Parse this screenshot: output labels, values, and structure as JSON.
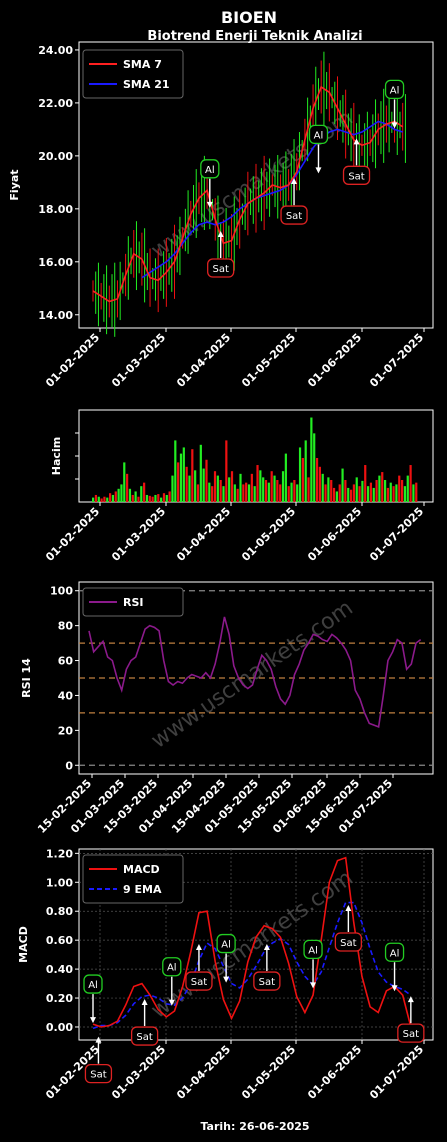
{
  "header": {
    "symbol": "BIOEN",
    "subtitle": "Biotrend Enerji Teknik Analizi"
  },
  "footer": {
    "date": "Tarih: 26-06-2025"
  },
  "watermark": "www.uscmarkets.com",
  "colors": {
    "bull": "#22ee22",
    "bear": "#ee1111",
    "sma7": "#ff2020",
    "sma21": "#1a1aff",
    "rsi": "#8b1a8b",
    "macd": "#ee1111",
    "ema9": "#1a1aff",
    "ref": "#c08040",
    "axis": "#ffffff",
    "buy_border": "#22cc22",
    "sell_border": "#dd2222"
  },
  "chart_data": [
    {
      "id": "price",
      "type": "line",
      "ylabel": "Fiyat",
      "ylim": [
        13.5,
        24.3
      ],
      "yticks": [
        "14.00",
        "16.00",
        "18.00",
        "20.00",
        "22.00",
        "24.00"
      ],
      "xticks": [
        "01-02-2025",
        "01-03-2025",
        "01-04-2025",
        "01-05-2025",
        "01-06-2025",
        "01-07-2025"
      ],
      "legend": [
        "SMA 7",
        "SMA 21"
      ],
      "sma7": [
        [
          0,
          14.9
        ],
        [
          3,
          14.7
        ],
        [
          6,
          14.5
        ],
        [
          9,
          14.6
        ],
        [
          12,
          15.5
        ],
        [
          15,
          16.3
        ],
        [
          18,
          16.1
        ],
        [
          21,
          15.4
        ],
        [
          24,
          15.3
        ],
        [
          27,
          15.6
        ],
        [
          30,
          16.0
        ],
        [
          33,
          16.9
        ],
        [
          36,
          17.8
        ],
        [
          39,
          18.4
        ],
        [
          42,
          18.7
        ],
        [
          45,
          17.6
        ],
        [
          48,
          16.7
        ],
        [
          51,
          16.8
        ],
        [
          54,
          17.6
        ],
        [
          57,
          18.2
        ],
        [
          60,
          18.4
        ],
        [
          63,
          18.6
        ],
        [
          66,
          18.9
        ],
        [
          69,
          18.8
        ],
        [
          72,
          18.9
        ],
        [
          75,
          19.4
        ],
        [
          78,
          20.6
        ],
        [
          81,
          21.8
        ],
        [
          84,
          22.6
        ],
        [
          87,
          22.4
        ],
        [
          90,
          21.8
        ],
        [
          93,
          21.2
        ],
        [
          96,
          20.6
        ],
        [
          99,
          20.4
        ],
        [
          102,
          20.5
        ],
        [
          105,
          21.0
        ],
        [
          108,
          21.2
        ],
        [
          111,
          21.3
        ],
        [
          114,
          21.1
        ]
      ],
      "sma21": [
        [
          18,
          15.4
        ],
        [
          21,
          15.6
        ],
        [
          24,
          15.8
        ],
        [
          27,
          16.0
        ],
        [
          30,
          16.3
        ],
        [
          33,
          16.7
        ],
        [
          36,
          17.1
        ],
        [
          39,
          17.4
        ],
        [
          42,
          17.5
        ],
        [
          45,
          17.4
        ],
        [
          48,
          17.5
        ],
        [
          51,
          17.7
        ],
        [
          54,
          18.0
        ],
        [
          57,
          18.2
        ],
        [
          60,
          18.4
        ],
        [
          63,
          18.5
        ],
        [
          66,
          18.6
        ],
        [
          69,
          18.7
        ],
        [
          72,
          18.9
        ],
        [
          75,
          19.3
        ],
        [
          78,
          19.8
        ],
        [
          81,
          20.3
        ],
        [
          84,
          20.7
        ],
        [
          87,
          20.9
        ],
        [
          90,
          21.0
        ],
        [
          93,
          20.9
        ],
        [
          96,
          20.8
        ],
        [
          99,
          20.9
        ],
        [
          102,
          21.1
        ],
        [
          105,
          21.3
        ],
        [
          108,
          21.2
        ],
        [
          111,
          21.0
        ],
        [
          114,
          20.9
        ]
      ],
      "signals": [
        {
          "label": "Al",
          "x": 43,
          "y": 18.0,
          "dir": "up"
        },
        {
          "label": "Sat",
          "x": 47,
          "y": 17.2,
          "dir": "down"
        },
        {
          "label": "Sat",
          "x": 74,
          "y": 19.2,
          "dir": "down"
        },
        {
          "label": "Al",
          "x": 83,
          "y": 19.3,
          "dir": "up"
        },
        {
          "label": "Sat",
          "x": 97,
          "y": 20.7,
          "dir": "down"
        },
        {
          "label": "Al",
          "x": 111,
          "y": 21.0,
          "dir": "up"
        }
      ]
    },
    {
      "id": "volume",
      "type": "bar",
      "ylabel": "Hacim",
      "xticks": [
        "01-02-2025",
        "01-03-2025",
        "01-04-2025",
        "01-05-2025",
        "01-06-2025",
        "01-07-2025"
      ],
      "values": [
        0.05,
        0.08,
        0.06,
        0.04,
        0.06,
        0.05,
        0.1,
        0.08,
        0.12,
        0.15,
        0.2,
        0.45,
        0.32,
        0.15,
        0.08,
        0.12,
        0.06,
        0.18,
        0.22,
        0.08,
        0.07,
        0.06,
        0.08,
        0.09,
        0.05,
        0.1,
        0.08,
        0.12,
        0.3,
        0.7,
        0.45,
        0.55,
        0.62,
        0.4,
        0.3,
        0.6,
        0.36,
        0.2,
        0.65,
        0.38,
        0.48,
        0.22,
        0.18,
        0.35,
        0.3,
        0.25,
        0.18,
        0.7,
        0.28,
        0.35,
        0.2,
        0.15,
        0.32,
        0.2,
        0.22,
        0.2,
        0.32,
        0.18,
        0.42,
        0.36,
        0.28,
        0.25,
        0.22,
        0.35,
        0.3,
        0.25,
        0.2,
        0.35,
        0.55,
        0.18,
        0.22,
        0.25,
        0.2,
        0.62,
        0.5,
        0.7,
        0.28,
        0.96,
        0.78,
        0.5,
        0.4,
        0.32,
        0.2,
        0.28,
        0.25,
        0.16,
        0.12,
        0.2,
        0.38,
        0.25,
        0.16,
        0.14,
        0.2,
        0.28,
        0.18,
        0.24,
        0.42,
        0.18,
        0.22,
        0.16,
        0.25,
        0.3,
        0.34,
        0.25,
        0.16,
        0.22,
        0.18,
        0.2,
        0.3,
        0.25,
        0.18,
        0.3,
        0.42,
        0.2,
        0.22
      ],
      "up": [
        1,
        0,
        1,
        0,
        0,
        1,
        0,
        1,
        0,
        1,
        1,
        1,
        0,
        1,
        0,
        1,
        0,
        1,
        0,
        1,
        0,
        0,
        1,
        0,
        1,
        0,
        1,
        0,
        1,
        1,
        0,
        1,
        1,
        0,
        1,
        0,
        1,
        0,
        1,
        1,
        0,
        1,
        0,
        0,
        1,
        0,
        1,
        0,
        1,
        0,
        1,
        0,
        1,
        0,
        0,
        1,
        0,
        1,
        0,
        1,
        1,
        0,
        1,
        0,
        1,
        0,
        0,
        1,
        1,
        0,
        1,
        0,
        1,
        1,
        0,
        1,
        0,
        1,
        1,
        0,
        0,
        1,
        0,
        1,
        0,
        0,
        1,
        0,
        1,
        0,
        1,
        0,
        0,
        1,
        0,
        1,
        0,
        1,
        0,
        1,
        0,
        1,
        0,
        1,
        0,
        1,
        0,
        1,
        0,
        0,
        1,
        1,
        0,
        1,
        0
      ]
    },
    {
      "id": "rsi",
      "type": "line",
      "ylabel": "RSI 14",
      "ylim": [
        -5,
        105
      ],
      "yticks": [
        "0",
        "20",
        "40",
        "60",
        "80",
        "100"
      ],
      "xticks": [
        "15-02-2025",
        "01-03-2025",
        "15-03-2025",
        "01-04-2025",
        "15-04-2025",
        "01-05-2025",
        "15-05-2025",
        "01-06-2025",
        "15-06-2025",
        "01-07-2025"
      ],
      "reference_levels": [
        30,
        50,
        70
      ],
      "legend": [
        "RSI"
      ],
      "values": [
        [
          0,
          77
        ],
        [
          2,
          65
        ],
        [
          4,
          68
        ],
        [
          6,
          71
        ],
        [
          8,
          62
        ],
        [
          10,
          60
        ],
        [
          12,
          50
        ],
        [
          14,
          43
        ],
        [
          16,
          55
        ],
        [
          18,
          60
        ],
        [
          20,
          62
        ],
        [
          22,
          70
        ],
        [
          24,
          78
        ],
        [
          26,
          80
        ],
        [
          28,
          79
        ],
        [
          30,
          77
        ],
        [
          32,
          60
        ],
        [
          34,
          48
        ],
        [
          36,
          46
        ],
        [
          38,
          48
        ],
        [
          40,
          47
        ],
        [
          42,
          50
        ],
        [
          44,
          52
        ],
        [
          46,
          51
        ],
        [
          48,
          50
        ],
        [
          50,
          53
        ],
        [
          52,
          50
        ],
        [
          54,
          58
        ],
        [
          56,
          70
        ],
        [
          58,
          85
        ],
        [
          60,
          75
        ],
        [
          62,
          57
        ],
        [
          64,
          50
        ],
        [
          66,
          46
        ],
        [
          68,
          44
        ],
        [
          70,
          46
        ],
        [
          72,
          55
        ],
        [
          74,
          63
        ],
        [
          76,
          60
        ],
        [
          78,
          55
        ],
        [
          80,
          45
        ],
        [
          82,
          38
        ],
        [
          84,
          35
        ],
        [
          86,
          40
        ],
        [
          88,
          52
        ],
        [
          90,
          58
        ],
        [
          92,
          66
        ],
        [
          94,
          70
        ],
        [
          96,
          75
        ],
        [
          98,
          74
        ],
        [
          100,
          72
        ],
        [
          102,
          71
        ],
        [
          104,
          75
        ],
        [
          106,
          73
        ],
        [
          108,
          70
        ],
        [
          110,
          66
        ],
        [
          112,
          60
        ],
        [
          114,
          43
        ],
        [
          116,
          38
        ],
        [
          118,
          30
        ],
        [
          120,
          24
        ],
        [
          122,
          23
        ],
        [
          124,
          22
        ],
        [
          126,
          40
        ],
        [
          128,
          60
        ],
        [
          130,
          65
        ],
        [
          132,
          72
        ],
        [
          134,
          70
        ],
        [
          136,
          55
        ],
        [
          138,
          58
        ],
        [
          140,
          70
        ],
        [
          142,
          72
        ]
      ]
    },
    {
      "id": "macd",
      "type": "line",
      "ylabel": "MACD",
      "ylim": [
        -0.09,
        1.23
      ],
      "yticks": [
        "0.00",
        "0.20",
        "0.40",
        "0.60",
        "0.80",
        "1.00",
        "1.20"
      ],
      "xticks": [
        "01-02-2025",
        "01-03-2025",
        "01-04-2025",
        "01-05-2025",
        "01-06-2025",
        "01-07-2025"
      ],
      "legend": [
        "MACD",
        "9 EMA"
      ],
      "grid": true,
      "macd": [
        [
          0,
          0.02
        ],
        [
          3,
          0.0
        ],
        [
          6,
          0.01
        ],
        [
          9,
          0.04
        ],
        [
          12,
          0.15
        ],
        [
          15,
          0.28
        ],
        [
          18,
          0.3
        ],
        [
          21,
          0.22
        ],
        [
          24,
          0.12
        ],
        [
          27,
          0.07
        ],
        [
          30,
          0.11
        ],
        [
          33,
          0.28
        ],
        [
          36,
          0.52
        ],
        [
          39,
          0.79
        ],
        [
          42,
          0.8
        ],
        [
          45,
          0.45
        ],
        [
          48,
          0.19
        ],
        [
          51,
          0.06
        ],
        [
          54,
          0.18
        ],
        [
          57,
          0.45
        ],
        [
          60,
          0.62
        ],
        [
          63,
          0.7
        ],
        [
          66,
          0.68
        ],
        [
          69,
          0.62
        ],
        [
          72,
          0.44
        ],
        [
          75,
          0.21
        ],
        [
          78,
          0.1
        ],
        [
          81,
          0.22
        ],
        [
          84,
          0.6
        ],
        [
          87,
          1.0
        ],
        [
          90,
          1.15
        ],
        [
          93,
          1.17
        ],
        [
          96,
          0.72
        ],
        [
          99,
          0.35
        ],
        [
          102,
          0.14
        ],
        [
          105,
          0.1
        ],
        [
          108,
          0.25
        ],
        [
          111,
          0.28
        ],
        [
          114,
          0.22
        ],
        [
          117,
          0.0
        ]
      ],
      "ema9": [
        [
          0,
          -0.01
        ],
        [
          3,
          0.01
        ],
        [
          6,
          0.01
        ],
        [
          9,
          0.03
        ],
        [
          12,
          0.08
        ],
        [
          15,
          0.16
        ],
        [
          18,
          0.21
        ],
        [
          21,
          0.22
        ],
        [
          24,
          0.2
        ],
        [
          27,
          0.16
        ],
        [
          30,
          0.15
        ],
        [
          33,
          0.2
        ],
        [
          36,
          0.3
        ],
        [
          39,
          0.46
        ],
        [
          42,
          0.58
        ],
        [
          45,
          0.54
        ],
        [
          48,
          0.42
        ],
        [
          51,
          0.3
        ],
        [
          54,
          0.27
        ],
        [
          57,
          0.33
        ],
        [
          60,
          0.42
        ],
        [
          63,
          0.52
        ],
        [
          66,
          0.58
        ],
        [
          69,
          0.61
        ],
        [
          72,
          0.57
        ],
        [
          75,
          0.45
        ],
        [
          78,
          0.35
        ],
        [
          81,
          0.29
        ],
        [
          84,
          0.38
        ],
        [
          87,
          0.55
        ],
        [
          90,
          0.72
        ],
        [
          93,
          0.86
        ],
        [
          96,
          0.86
        ],
        [
          99,
          0.72
        ],
        [
          102,
          0.54
        ],
        [
          105,
          0.38
        ],
        [
          108,
          0.31
        ],
        [
          111,
          0.28
        ],
        [
          114,
          0.26
        ],
        [
          117,
          0.22
        ]
      ],
      "signals": [
        {
          "label": "Al",
          "x": 0,
          "y": 0.02,
          "dir": "up"
        },
        {
          "label": "Sat",
          "x": 2,
          "y": -0.06,
          "dir": "down"
        },
        {
          "label": "Sat",
          "x": 19,
          "y": 0.2,
          "dir": "down"
        },
        {
          "label": "Al",
          "x": 29,
          "y": 0.14,
          "dir": "up"
        },
        {
          "label": "Sat",
          "x": 39,
          "y": 0.58,
          "dir": "down"
        },
        {
          "label": "Al",
          "x": 49,
          "y": 0.3,
          "dir": "up"
        },
        {
          "label": "Sat",
          "x": 64,
          "y": 0.58,
          "dir": "down"
        },
        {
          "label": "Al",
          "x": 81,
          "y": 0.26,
          "dir": "up"
        },
        {
          "label": "Sat",
          "x": 94,
          "y": 0.85,
          "dir": "down"
        },
        {
          "label": "Al",
          "x": 111,
          "y": 0.24,
          "dir": "up"
        },
        {
          "label": "Sat",
          "x": 117,
          "y": 0.22,
          "dir": "down"
        }
      ]
    }
  ]
}
